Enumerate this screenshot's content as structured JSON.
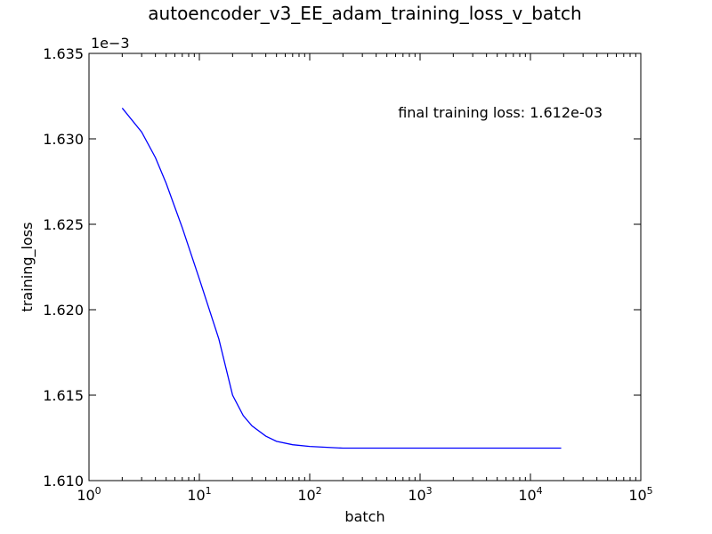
{
  "chart_data": {
    "type": "line",
    "title": "autoencoder_v3_EE_adam_training_loss_v_batch",
    "xlabel": "batch",
    "ylabel": "training_loss",
    "xscale": "log",
    "xlim": [
      1,
      100000
    ],
    "ylim": [
      0.00161,
      0.001635
    ],
    "y_offset_label": "1e−3",
    "x_ticks": [
      {
        "value": 1,
        "base": "10",
        "exp": "0"
      },
      {
        "value": 10,
        "base": "10",
        "exp": "1"
      },
      {
        "value": 100,
        "base": "10",
        "exp": "2"
      },
      {
        "value": 1000,
        "base": "10",
        "exp": "3"
      },
      {
        "value": 10000,
        "base": "10",
        "exp": "4"
      },
      {
        "value": 100000,
        "base": "10",
        "exp": "5"
      }
    ],
    "y_ticks": [
      {
        "value": 0.00161,
        "label": "1.610"
      },
      {
        "value": 0.001615,
        "label": "1.615"
      },
      {
        "value": 0.00162,
        "label": "1.620"
      },
      {
        "value": 0.001625,
        "label": "1.625"
      },
      {
        "value": 0.00163,
        "label": "1.630"
      },
      {
        "value": 0.001635,
        "label": "1.635"
      }
    ],
    "annotation": "final training loss: 1.612e-03",
    "line_color": "#0000ff",
    "grid": false,
    "series": [
      {
        "x": [
          2,
          3,
          4,
          5,
          7,
          10,
          15,
          20,
          25,
          30,
          40,
          50,
          70,
          100,
          200,
          500,
          1000,
          5000,
          10000,
          19000
        ],
        "y": [
          0.0016318,
          0.0016304,
          0.0016289,
          0.0016274,
          0.0016248,
          0.0016218,
          0.0016183,
          0.001615,
          0.0016138,
          0.0016132,
          0.0016126,
          0.0016123,
          0.0016121,
          0.001612,
          0.0016119,
          0.0016119,
          0.0016119,
          0.0016119,
          0.0016119,
          0.0016119
        ]
      }
    ]
  }
}
